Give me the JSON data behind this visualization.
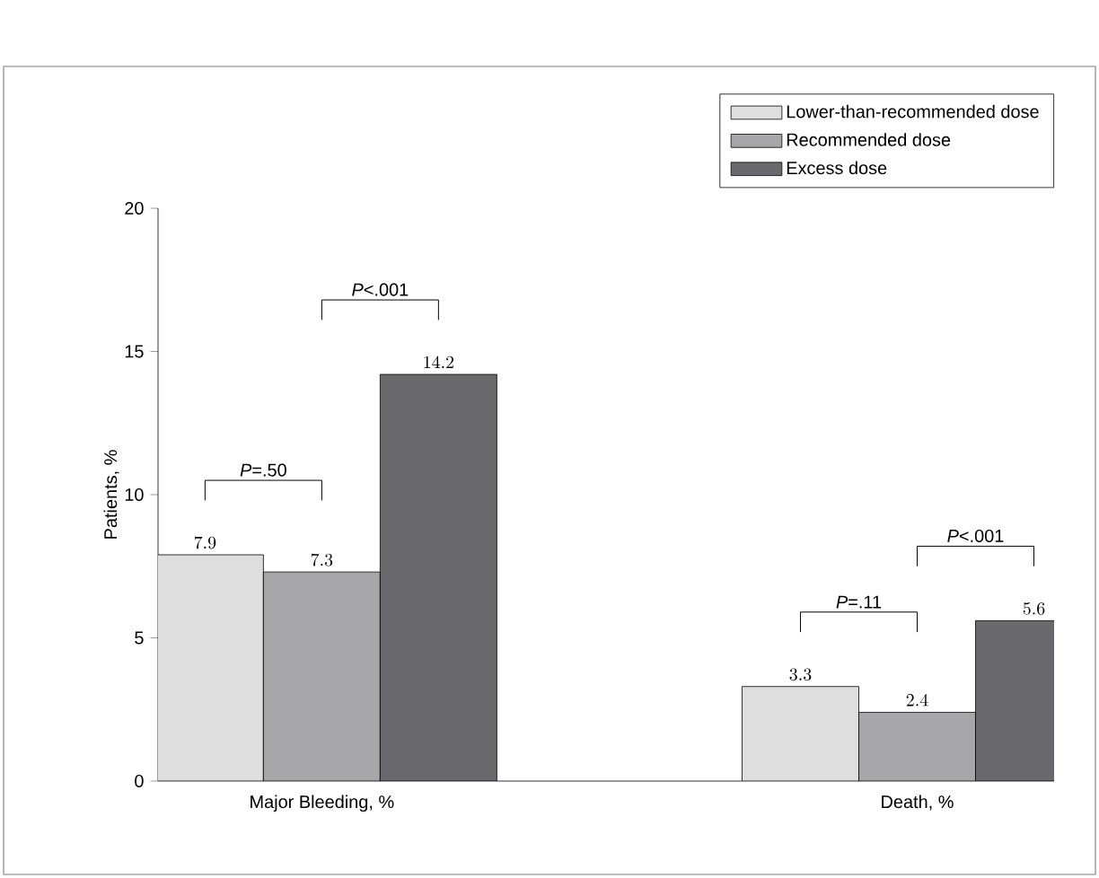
{
  "chart_data": {
    "type": "bar",
    "ylabel": "Patients, %",
    "categories": [
      "Major Bleeding, %",
      "Death, %"
    ],
    "series": [
      {
        "name": "Lower-than-recommended dose",
        "color": "#dedede",
        "values": [
          7.9,
          3.3
        ]
      },
      {
        "name": "Recommended dose",
        "color": "#a7a7a9",
        "values": [
          7.3,
          2.4
        ]
      },
      {
        "name": "Excess dose",
        "color": "#6a6a6e",
        "values": [
          14.2,
          5.6
        ]
      }
    ],
    "ylim": [
      0,
      20
    ],
    "yticks": [
      0,
      5,
      10,
      15,
      20
    ],
    "data_labels": true,
    "legend": "top right",
    "annotations": [
      "*P*=.50",
      "*P*<.001",
      "*P*=.11",
      "*P*<.001"
    ]
  }
}
